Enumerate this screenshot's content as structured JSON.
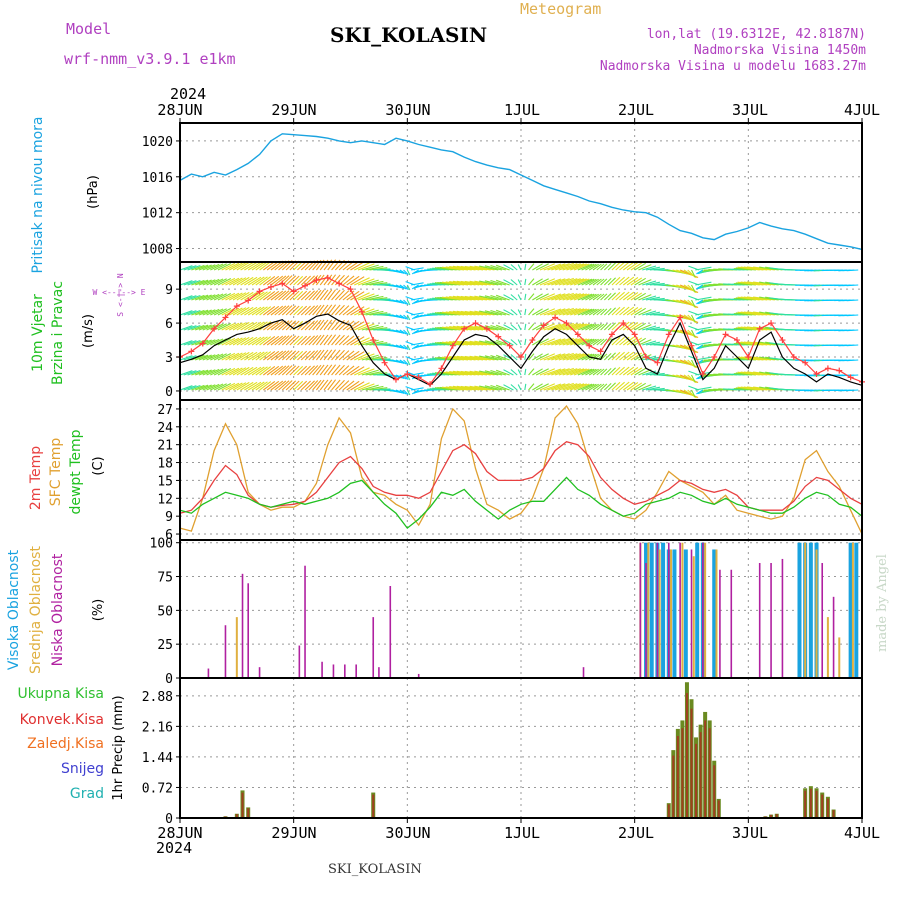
{
  "header": {
    "model_label": "Model",
    "model_name": "wrf-nmm_v3.9.1 e1km",
    "station": "SKI_KOLASIN",
    "meteogram": "Meteogram",
    "lonlat": "lon,lat (19.6312E, 42.8187N)",
    "elevation": "Nadmorska Visina 1450m",
    "model_elevation": "Nadmorska Visina u modelu 1683.27m",
    "year_top": "2024",
    "year_bottom": "2024",
    "footer_station": "SKI_KOLASIN",
    "signature": "made by Angel"
  },
  "colors": {
    "pressure": "#1aa3e0",
    "temp2m": "#e84040",
    "sfc_temp": "#e0a030",
    "dewpt": "#20c020",
    "high_cloud": "#1aa3e0",
    "mid_cloud": "#e0b040",
    "low_cloud": "#b020a0",
    "total_precip": "#30c030",
    "conv_precip": "#e03030",
    "frozen_precip": "#f07020",
    "snow": "#4040d0",
    "hail": "#20b0b0",
    "panel_label_purple": "#b040c0",
    "header_orange": "#e0b050"
  },
  "chart_data": [
    {
      "type": "line",
      "name": "pressure",
      "xlabels": [
        "28JUN",
        "29JUN",
        "30JUN",
        "1JUL",
        "2JUL",
        "3JUL",
        "4JUL"
      ],
      "ylabel_main": "Pritisak na nivou mora",
      "unit": "(hPa)",
      "yticks": [
        1008,
        1012,
        1016,
        1020
      ],
      "ylim": [
        1006.5,
        1022
      ],
      "x_days": [
        0,
        0.1,
        0.2,
        0.3,
        0.4,
        0.5,
        0.6,
        0.7,
        0.8,
        0.9,
        1.0,
        1.1,
        1.2,
        1.3,
        1.4,
        1.5,
        1.6,
        1.7,
        1.8,
        1.9,
        2.0,
        2.1,
        2.2,
        2.3,
        2.4,
        2.5,
        2.6,
        2.7,
        2.8,
        2.9,
        3.0,
        3.1,
        3.2,
        3.3,
        3.4,
        3.5,
        3.6,
        3.7,
        3.8,
        3.9,
        4.0,
        4.1,
        4.2,
        4.3,
        4.4,
        4.5,
        4.6,
        4.7,
        4.8,
        4.9,
        5.0,
        5.1,
        5.2,
        5.3,
        5.4,
        5.5,
        5.6,
        5.7,
        5.8,
        5.9,
        6.0
      ],
      "values": [
        1015.6,
        1016.3,
        1016.0,
        1016.5,
        1016.2,
        1016.8,
        1017.5,
        1018.5,
        1020.0,
        1020.8,
        1020.7,
        1020.6,
        1020.5,
        1020.3,
        1020.0,
        1019.8,
        1020.0,
        1019.8,
        1019.6,
        1020.3,
        1020.0,
        1019.6,
        1019.3,
        1019.0,
        1018.8,
        1018.2,
        1017.7,
        1017.3,
        1017.0,
        1016.8,
        1016.2,
        1015.6,
        1015.0,
        1014.6,
        1014.2,
        1013.8,
        1013.3,
        1013.0,
        1012.6,
        1012.3,
        1012.1,
        1012.0,
        1011.5,
        1010.7,
        1010.0,
        1009.7,
        1009.2,
        1009.0,
        1009.6,
        1009.9,
        1010.3,
        1010.9,
        1010.5,
        1010.2,
        1010.0,
        1009.6,
        1009.1,
        1008.6,
        1008.4,
        1008.2,
        1007.9
      ]
    },
    {
      "type": "line",
      "name": "wind",
      "ylabel_main": "10m Vjetar",
      "ylabel_sub": "Brzina i Pravac",
      "unit": "(m/s)",
      "compass": "W <--|--> E",
      "compass_ns": "S <-|-> N",
      "yticks": [
        0,
        3,
        6,
        9
      ],
      "ylim": [
        -0.8,
        11.4
      ],
      "x_days": [
        0,
        0.1,
        0.2,
        0.3,
        0.4,
        0.5,
        0.6,
        0.7,
        0.8,
        0.9,
        1.0,
        1.1,
        1.2,
        1.3,
        1.4,
        1.5,
        1.6,
        1.7,
        1.8,
        1.9,
        2.0,
        2.1,
        2.2,
        2.3,
        2.4,
        2.5,
        2.6,
        2.7,
        2.8,
        2.9,
        3.0,
        3.1,
        3.2,
        3.3,
        3.4,
        3.5,
        3.6,
        3.7,
        3.8,
        3.9,
        4.0,
        4.1,
        4.2,
        4.3,
        4.4,
        4.5,
        4.6,
        4.7,
        4.8,
        4.9,
        5.0,
        5.1,
        5.2,
        5.3,
        5.4,
        5.5,
        5.6,
        5.7,
        5.8,
        5.9,
        6.0
      ],
      "speed": [
        2.5,
        2.8,
        3.2,
        4.0,
        4.5,
        5.0,
        5.2,
        5.5,
        6.0,
        6.3,
        5.5,
        6.0,
        6.6,
        6.8,
        6.2,
        5.8,
        4.0,
        2.5,
        1.5,
        1.0,
        1.5,
        1.0,
        0.5,
        1.5,
        3.0,
        4.5,
        5.0,
        4.8,
        4.0,
        3.0,
        2.0,
        3.5,
        4.8,
        5.5,
        5.0,
        4.0,
        3.0,
        2.8,
        4.5,
        5.0,
        4.0,
        2.0,
        1.5,
        4.0,
        6.0,
        3.5,
        1.0,
        2.0,
        4.0,
        3.0,
        2.0,
        4.5,
        5.2,
        3.0,
        2.0,
        1.5,
        0.8,
        1.5,
        1.2,
        0.8,
        0.5
      ],
      "gust": [
        3.0,
        3.5,
        4.2,
        5.5,
        6.5,
        7.5,
        8.0,
        8.8,
        9.2,
        9.5,
        8.8,
        9.3,
        9.8,
        10.0,
        9.5,
        9.0,
        7.0,
        4.5,
        2.5,
        1.0,
        1.5,
        1.2,
        0.6,
        2.0,
        4.0,
        5.5,
        6.0,
        5.5,
        4.8,
        4.0,
        3.0,
        4.5,
        5.8,
        6.5,
        6.0,
        5.0,
        4.0,
        3.5,
        5.0,
        6.0,
        5.0,
        3.0,
        2.5,
        5.0,
        6.5,
        4.0,
        1.5,
        3.0,
        5.0,
        4.5,
        3.0,
        5.5,
        6.0,
        4.5,
        3.0,
        2.5,
        1.5,
        2.0,
        1.8,
        1.2,
        0.8
      ],
      "direction_deg": [
        225,
        225,
        220,
        215,
        215,
        210,
        210,
        205,
        205,
        200,
        200,
        200,
        195,
        195,
        200,
        210,
        230,
        260,
        290,
        320,
        350,
        30,
        70,
        100,
        110,
        110,
        115,
        115,
        120,
        135,
        170,
        210,
        225,
        225,
        225,
        220,
        210,
        200,
        200,
        205,
        210,
        240,
        280,
        300,
        320,
        350,
        30,
        60,
        90,
        100,
        100,
        110,
        110,
        115,
        100,
        90,
        80,
        80,
        85,
        80,
        80
      ]
    },
    {
      "type": "line",
      "name": "temperature",
      "ylabel_a": "2m Temp",
      "ylabel_b": "SFC Temp",
      "ylabel_c": "dewpt Temp",
      "unit": "(C)",
      "yticks": [
        6,
        9,
        12,
        15,
        18,
        21,
        24,
        27
      ],
      "ylim": [
        5,
        28.5
      ],
      "x_days": [
        0,
        0.1,
        0.2,
        0.3,
        0.4,
        0.5,
        0.6,
        0.7,
        0.8,
        0.9,
        1.0,
        1.1,
        1.2,
        1.3,
        1.4,
        1.5,
        1.6,
        1.7,
        1.8,
        1.9,
        2.0,
        2.1,
        2.2,
        2.3,
        2.4,
        2.5,
        2.6,
        2.7,
        2.8,
        2.9,
        3.0,
        3.1,
        3.2,
        3.3,
        3.4,
        3.5,
        3.6,
        3.7,
        3.8,
        3.9,
        4.0,
        4.1,
        4.2,
        4.3,
        4.4,
        4.5,
        4.6,
        4.7,
        4.8,
        4.9,
        5.0,
        5.1,
        5.2,
        5.3,
        5.4,
        5.5,
        5.6,
        5.7,
        5.8,
        5.9,
        6.0
      ],
      "t2m": [
        9.5,
        10.0,
        12.0,
        15.0,
        17.5,
        16.0,
        12.5,
        11.0,
        10.5,
        10.8,
        11.0,
        11.5,
        13.0,
        15.5,
        18.0,
        19.0,
        17.0,
        14.0,
        13.0,
        12.5,
        12.5,
        12.0,
        13.0,
        16.5,
        20.0,
        21.0,
        19.5,
        16.5,
        15.0,
        15.0,
        15.0,
        15.5,
        17.0,
        20.0,
        21.5,
        21.0,
        19.0,
        15.5,
        13.5,
        12.0,
        11.0,
        11.5,
        12.5,
        13.5,
        15.0,
        14.5,
        13.5,
        13.0,
        13.5,
        12.5,
        10.5,
        10.0,
        10.0,
        10.0,
        11.5,
        14.0,
        15.5,
        15.0,
        13.5,
        12.0,
        11.0
      ],
      "sfc": [
        7.0,
        6.5,
        12.0,
        20.0,
        24.5,
        21.0,
        13.0,
        11.0,
        10.0,
        10.5,
        10.5,
        11.5,
        14.5,
        21.0,
        25.5,
        23.0,
        15.5,
        13.0,
        12.5,
        11.0,
        10.0,
        7.5,
        11.0,
        22.0,
        27.0,
        25.0,
        17.0,
        11.0,
        10.0,
        8.5,
        9.5,
        12.0,
        17.0,
        25.5,
        27.5,
        24.5,
        18.0,
        12.0,
        10.0,
        9.0,
        8.5,
        10.0,
        13.0,
        16.5,
        15.0,
        14.0,
        13.0,
        11.0,
        12.5,
        10.0,
        9.5,
        9.0,
        8.5,
        9.0,
        12.0,
        18.5,
        20.0,
        16.5,
        14.0,
        10.0,
        6.0
      ],
      "dewpt": [
        10.0,
        9.5,
        11.0,
        12.0,
        13.0,
        12.5,
        12.0,
        11.0,
        10.5,
        11.0,
        11.5,
        11.0,
        11.5,
        12.0,
        13.0,
        14.5,
        15.0,
        13.0,
        11.0,
        9.5,
        7.0,
        8.5,
        10.5,
        13.0,
        12.5,
        13.5,
        11.5,
        10.0,
        8.5,
        10.0,
        11.0,
        11.5,
        11.5,
        13.5,
        15.5,
        13.5,
        12.5,
        11.0,
        10.0,
        9.0,
        9.5,
        11.0,
        11.5,
        12.0,
        13.0,
        12.5,
        11.5,
        11.0,
        12.0,
        11.0,
        10.5,
        10.0,
        9.5,
        9.5,
        10.5,
        12.0,
        13.0,
        12.5,
        11.0,
        10.5,
        9.0
      ]
    },
    {
      "type": "bar",
      "name": "cloud",
      "ylabel_a": "Visoka Oblacnost",
      "ylabel_b": "Srednja Oblacnost",
      "ylabel_c": "Niska Oblacnost",
      "unit": "(%)",
      "yticks": [
        0,
        25,
        50,
        75,
        100
      ],
      "ylim": [
        0,
        102
      ],
      "low_x": [
        0.25,
        0.4,
        0.55,
        0.6,
        0.7,
        1.05,
        1.1,
        1.25,
        1.35,
        1.45,
        1.55,
        1.7,
        1.75,
        1.85,
        2.1,
        3.55,
        4.05,
        4.1,
        4.2,
        4.3,
        4.4,
        4.5,
        4.6,
        4.75,
        4.85,
        5.1,
        5.2,
        5.3,
        5.65,
        5.75
      ],
      "low_y": [
        7,
        39,
        77,
        70,
        8,
        24,
        83,
        12,
        10,
        10,
        10,
        45,
        8,
        68,
        3,
        8,
        100,
        85,
        100,
        100,
        100,
        95,
        100,
        80,
        80,
        85,
        85,
        88,
        85,
        60
      ],
      "high_x": [
        4.1,
        4.15,
        4.2,
        4.25,
        4.3,
        4.35,
        4.45,
        4.55,
        4.6,
        4.7,
        5.45,
        5.5,
        5.55,
        5.6,
        5.9,
        5.95
      ],
      "high_y": [
        100,
        100,
        100,
        100,
        95,
        95,
        95,
        100,
        100,
        95,
        100,
        100,
        100,
        100,
        100,
        100
      ],
      "mid_x": [
        0.5,
        4.05,
        4.12,
        4.22,
        4.32,
        4.42,
        4.52,
        4.62,
        4.72,
        5.5,
        5.6,
        5.7,
        5.8,
        5.92
      ],
      "mid_y": [
        45,
        100,
        100,
        95,
        95,
        100,
        90,
        100,
        95,
        100,
        95,
        45,
        30,
        100
      ]
    },
    {
      "type": "bar",
      "name": "precip",
      "label_total": "Ukupna Kisa",
      "label_conv": "Konvek.Kisa",
      "label_frozen": "Zaledj.Kisa",
      "label_snow": "Snijeg",
      "label_hail": "Grad",
      "unit": "1hr Precip (mm)",
      "yticks": [
        0,
        0.72,
        1.44,
        2.16,
        2.88
      ],
      "ylim": [
        0,
        3.3
      ],
      "x_days": [
        0.4,
        0.5,
        0.55,
        0.6,
        1.7,
        4.3,
        4.34,
        4.38,
        4.42,
        4.46,
        4.5,
        4.54,
        4.58,
        4.62,
        4.66,
        4.7,
        4.74,
        5.15,
        5.2,
        5.25,
        5.5,
        5.55,
        5.6,
        5.65,
        5.7,
        5.75
      ],
      "values": [
        0.04,
        0.1,
        0.65,
        0.25,
        0.6,
        0.35,
        1.6,
        2.1,
        2.3,
        3.2,
        2.8,
        1.9,
        2.2,
        2.5,
        2.3,
        1.35,
        0.45,
        0.04,
        0.08,
        0.1,
        0.7,
        0.75,
        0.7,
        0.6,
        0.5,
        0.2
      ]
    }
  ]
}
